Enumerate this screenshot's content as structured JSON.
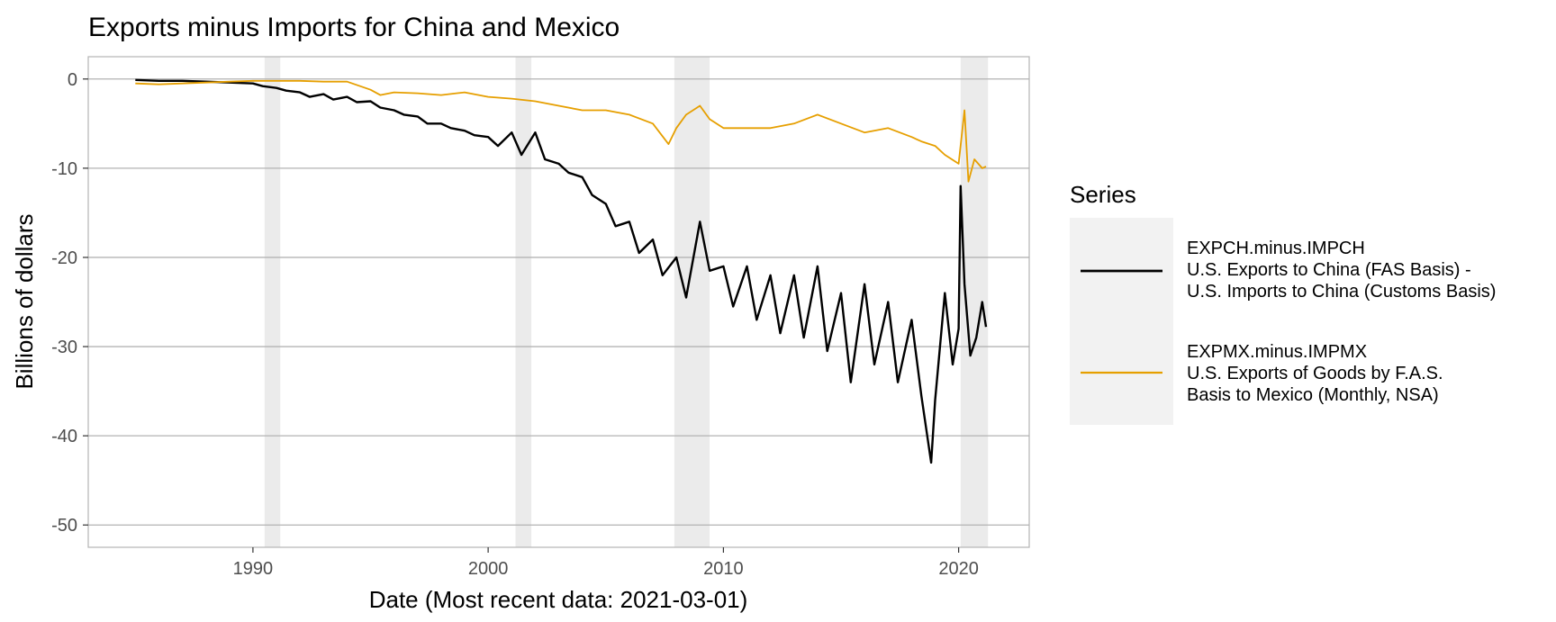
{
  "chart_data": {
    "type": "line",
    "title": "Exports minus Imports for China and Mexico",
    "xlabel": "Date (Most recent data: 2021-03-01)",
    "ylabel": "Billions of dollars",
    "x_range": [
      "1983-01-01",
      "2023-01-01"
    ],
    "ylim": [
      -52.5,
      2.5
    ],
    "x_ticks": [
      {
        "value": "1990-01-01",
        "label": "1990"
      },
      {
        "value": "2000-01-01",
        "label": "2000"
      },
      {
        "value": "2010-01-01",
        "label": "2010"
      },
      {
        "value": "2020-01-01",
        "label": "2020"
      }
    ],
    "y_ticks": [
      0,
      -10,
      -20,
      -30,
      -40,
      -50
    ],
    "y_tick_labels": [
      "0",
      "-10",
      "-20",
      "-30",
      "-40",
      "-50"
    ],
    "grid": true,
    "recessions": [
      [
        "1990-07-01",
        "1991-03-01"
      ],
      [
        "2001-03-01",
        "2001-11-01"
      ],
      [
        "2007-12-01",
        "2009-06-01"
      ],
      [
        "2020-02-01",
        "2021-04-01"
      ]
    ],
    "legend": {
      "title": "Series",
      "placement": "right",
      "entries": [
        {
          "lines": [
            "EXPCH.minus.IMPCH",
            "U.S. Exports to China (FAS Basis) -",
            "U.S. Imports to China (Customs Basis)"
          ],
          "color": "#000000"
        },
        {
          "lines": [
            "EXPMX.minus.IMPMX",
            "U.S. Exports of Goods by F.A.S.",
            "Basis to Mexico (Monthly, NSA)"
          ],
          "color": "#E69F00"
        }
      ]
    },
    "series": [
      {
        "name": "EXPCH.minus.IMPCH",
        "color": "#000000",
        "x": [
          "1985-01-01",
          "1986-01-01",
          "1987-01-01",
          "1988-01-01",
          "1989-01-01",
          "1990-01-01",
          "1990-06-01",
          "1991-01-01",
          "1991-06-01",
          "1992-01-01",
          "1992-06-01",
          "1993-01-01",
          "1993-06-01",
          "1994-01-01",
          "1994-06-01",
          "1995-01-01",
          "1995-06-01",
          "1996-01-01",
          "1996-06-01",
          "1997-01-01",
          "1997-06-01",
          "1998-01-01",
          "1998-06-01",
          "1999-01-01",
          "1999-06-01",
          "2000-01-01",
          "2000-06-01",
          "2001-01-01",
          "2001-06-01",
          "2002-01-01",
          "2002-06-01",
          "2003-01-01",
          "2003-06-01",
          "2004-01-01",
          "2004-06-01",
          "2005-01-01",
          "2005-06-01",
          "2006-01-01",
          "2006-06-01",
          "2007-01-01",
          "2007-06-01",
          "2008-01-01",
          "2008-06-01",
          "2009-01-01",
          "2009-06-01",
          "2010-01-01",
          "2010-06-01",
          "2011-01-01",
          "2011-06-01",
          "2012-01-01",
          "2012-06-01",
          "2013-01-01",
          "2013-06-01",
          "2014-01-01",
          "2014-06-01",
          "2015-01-01",
          "2015-06-01",
          "2016-01-01",
          "2016-06-01",
          "2017-01-01",
          "2017-06-01",
          "2018-01-01",
          "2018-06-01",
          "2018-11-01",
          "2019-01-01",
          "2019-06-01",
          "2019-10-01",
          "2020-01-01",
          "2020-02-01",
          "2020-04-01",
          "2020-07-01",
          "2020-10-01",
          "2021-01-01",
          "2021-03-01"
        ],
        "values": [
          -0.1,
          -0.2,
          -0.2,
          -0.3,
          -0.4,
          -0.5,
          -0.8,
          -1.0,
          -1.3,
          -1.5,
          -2.0,
          -1.7,
          -2.3,
          -2.0,
          -2.6,
          -2.5,
          -3.2,
          -3.5,
          -4.0,
          -4.2,
          -5.0,
          -5.0,
          -5.5,
          -5.8,
          -6.3,
          -6.5,
          -7.5,
          -6.0,
          -8.5,
          -6.0,
          -9.0,
          -9.5,
          -10.5,
          -11.0,
          -13.0,
          -14.0,
          -16.5,
          -16.0,
          -19.5,
          -18.0,
          -22.0,
          -20.0,
          -24.5,
          -16.0,
          -21.5,
          -21.0,
          -25.5,
          -21.0,
          -27.0,
          -22.0,
          -28.5,
          -22.0,
          -29.0,
          -21.0,
          -30.5,
          -24.0,
          -34.0,
          -23.0,
          -32.0,
          -25.0,
          -34.0,
          -27.0,
          -35.5,
          -43.0,
          -36.0,
          -24.0,
          -32.0,
          -28.0,
          -12.0,
          -23.0,
          -31.0,
          -29.0,
          -25.0,
          -27.8
        ]
      },
      {
        "name": "EXPMX.minus.IMPMX",
        "color": "#E69F00",
        "x": [
          "1985-01-01",
          "1986-01-01",
          "1987-01-01",
          "1988-01-01",
          "1989-01-01",
          "1990-01-01",
          "1991-01-01",
          "1992-01-01",
          "1993-01-01",
          "1994-01-01",
          "1995-01-01",
          "1995-06-01",
          "1996-01-01",
          "1997-01-01",
          "1998-01-01",
          "1999-01-01",
          "2000-01-01",
          "2001-01-01",
          "2002-01-01",
          "2003-01-01",
          "2004-01-01",
          "2005-01-01",
          "2006-01-01",
          "2007-01-01",
          "2007-09-01",
          "2008-01-01",
          "2008-06-01",
          "2009-01-01",
          "2009-06-01",
          "2010-01-01",
          "2011-01-01",
          "2012-01-01",
          "2013-01-01",
          "2014-01-01",
          "2015-01-01",
          "2016-01-01",
          "2017-01-01",
          "2018-01-01",
          "2018-06-01",
          "2019-01-01",
          "2019-06-01",
          "2020-01-01",
          "2020-04-01",
          "2020-06-01",
          "2020-09-01",
          "2021-01-01",
          "2021-03-01"
        ],
        "values": [
          -0.5,
          -0.6,
          -0.5,
          -0.4,
          -0.3,
          -0.2,
          -0.2,
          -0.2,
          -0.3,
          -0.3,
          -1.2,
          -1.8,
          -1.5,
          -1.6,
          -1.8,
          -1.5,
          -2.0,
          -2.2,
          -2.5,
          -3.0,
          -3.5,
          -3.5,
          -4.0,
          -5.0,
          -7.3,
          -5.5,
          -4.0,
          -3.0,
          -4.5,
          -5.5,
          -5.5,
          -5.5,
          -5.0,
          -4.0,
          -5.0,
          -6.0,
          -5.5,
          -6.5,
          -7.0,
          -7.5,
          -8.5,
          -9.5,
          -3.5,
          -11.5,
          -9.0,
          -10.0,
          -9.8
        ]
      }
    ]
  }
}
